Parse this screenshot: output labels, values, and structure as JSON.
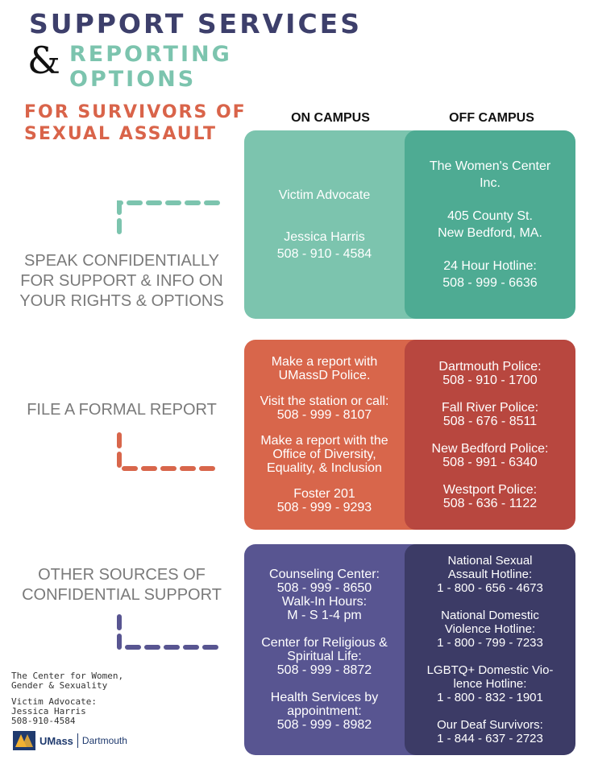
{
  "header": {
    "title_line1": "SUPPORT SERVICES",
    "ampersand": "&",
    "title_line2a": "REPORTING",
    "title_line2b": "OPTIONS",
    "subtitle_line1": "FOR SURVIVORS OF",
    "subtitle_line2": "SEXUAL ASSAULT"
  },
  "columns": {
    "on_campus": "ON CAMPUS",
    "off_campus": "OFF CAMPUS"
  },
  "sections": {
    "confidential": {
      "label": [
        "SPEAK CONFIDENTIALLY",
        "FOR SUPPORT & INFO ON",
        "YOUR RIGHTS & OPTIONS"
      ],
      "on_campus": {
        "title": "Victim Advocate",
        "name": "Jessica Harris",
        "phone": "508 - 910 - 4584"
      },
      "off_campus": {
        "org_line1": "The Women's Center",
        "org_line2": "Inc.",
        "address_line1": "405 County St.",
        "address_line2": "New Bedford, MA.",
        "hotline_label": "24 Hour Hotline:",
        "hotline_phone": "508 - 999 - 6636"
      }
    },
    "formal_report": {
      "label": "FILE A FORMAL REPORT",
      "on_campus": {
        "l1": "Make a report with",
        "l2": "UMassD Police.",
        "l3": "Visit the station or call:",
        "l4": "508 - 999 - 8107",
        "l5": "Make a report with the",
        "l6": "Office of Diversity,",
        "l7": "Equality, & Inclusion",
        "l8": "Foster 201",
        "l9": "508 - 999 - 9293"
      },
      "off_campus": [
        {
          "name": "Dartmouth Police:",
          "phone": "508 - 910 - 1700"
        },
        {
          "name": "Fall River Police:",
          "phone": "508 - 676 - 8511"
        },
        {
          "name": "New Bedford Police:",
          "phone": "508 - 991 - 6340"
        },
        {
          "name": "Westport Police:",
          "phone": "508 - 636 - 1122"
        }
      ]
    },
    "other": {
      "label": [
        "OTHER SOURCES OF",
        "CONFIDENTIAL SUPPORT"
      ],
      "on_campus": {
        "l1": "Counseling Center:",
        "l2": "508 - 999 - 8650",
        "l3": "Walk-In Hours:",
        "l4": "M - S 1-4 pm",
        "l5": "Center for Religious &",
        "l6": "Spiritual Life:",
        "l7": "508 - 999 - 8872",
        "l8": "Health Services by",
        "l9": "appointment:",
        "l10": "508 - 999 - 8982"
      },
      "off_campus": {
        "a1": "National Sexual",
        "a2": "Assault Hotline:",
        "a3": "1 - 800 - 656 - 4673",
        "b1": "National Domestic",
        "b2": "Violence Hotline:",
        "b3": "1 - 800 - 799 - 7233",
        "c1": "LGBTQ+ Domestic Vio-",
        "c2": "lence Hotline:",
        "c3": "1 - 800 - 832 - 1901",
        "d1": "Our Deaf Survivors:",
        "d2": "1 - 844 - 637 - 2723"
      }
    }
  },
  "footer": {
    "org_line1": "The Center for Women,",
    "org_line2": "Gender & Sexuality",
    "advocate_line1": "Victim Advocate:",
    "advocate_line2": "Jessica Harris",
    "advocate_line3": "508-910-4584",
    "logo_umass": "UMass",
    "logo_campus": "Dartmouth"
  },
  "colors": {
    "navy": "#3d3f6b",
    "teal_light": "#7cc4ae",
    "teal_dark": "#4eab93",
    "orange": "#d8664b",
    "red": "#b8473f",
    "purple": "#585591",
    "purple_dark": "#3c3b66"
  }
}
